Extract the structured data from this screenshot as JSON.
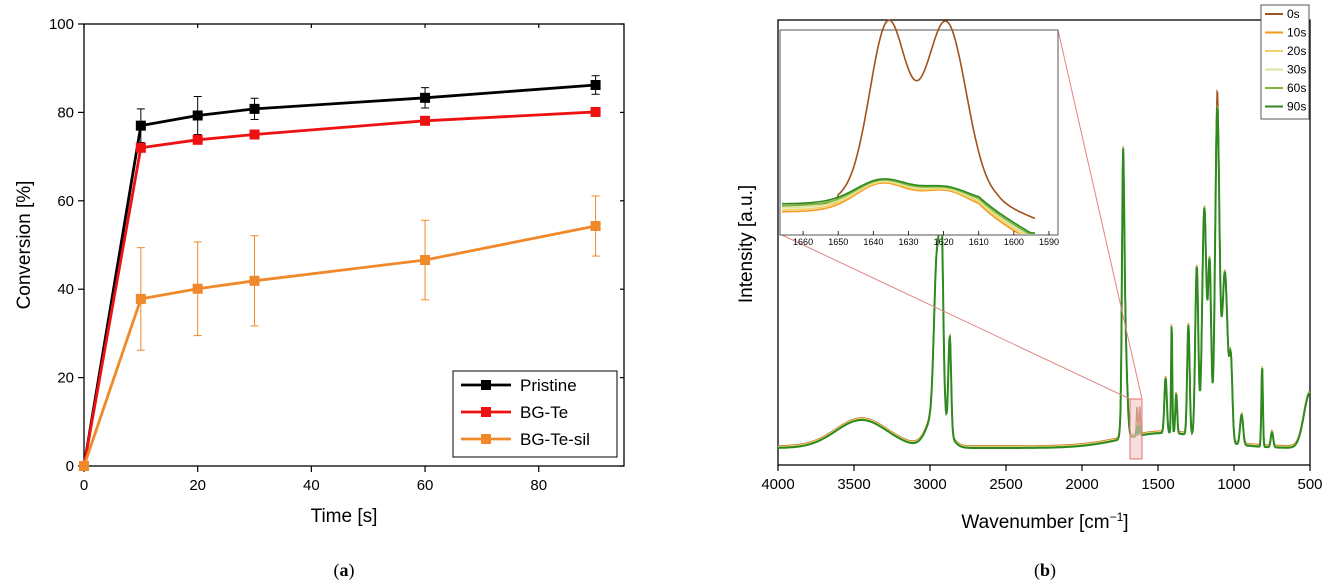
{
  "chart_data": [
    {
      "panel": "(a)",
      "type": "line",
      "xlabel": "Time [s]",
      "ylabel": "Conversion [%]",
      "xlim": [
        0,
        95
      ],
      "ylim": [
        0,
        100
      ],
      "xticks": [
        0,
        20,
        40,
        60,
        80
      ],
      "yticks": [
        0,
        20,
        40,
        60,
        80,
        100
      ],
      "grid": false,
      "legend_position": "bottom-right",
      "series": [
        {
          "name": "Pristine",
          "color": "#000000",
          "marker": "square",
          "x": [
            0,
            10,
            20,
            30,
            60,
            90
          ],
          "y": [
            0,
            77,
            79.3,
            80.8,
            83.3,
            86.2
          ],
          "err": [
            0,
            3.8,
            4.3,
            2.4,
            2.3,
            2.1
          ]
        },
        {
          "name": "BG-Te",
          "color": "#ee1111",
          "marker": "square",
          "x": [
            0,
            10,
            20,
            30,
            60,
            90
          ],
          "y": [
            0,
            72,
            73.8,
            75,
            78.1,
            80.1
          ],
          "err": [
            0,
            0.5,
            0.5,
            0.5,
            0.5,
            0.5
          ]
        },
        {
          "name": "BG-Te-sil",
          "color": "#f0892a",
          "marker": "square",
          "x": [
            0,
            10,
            20,
            30,
            60,
            90
          ],
          "y": [
            0,
            37.8,
            40.1,
            41.9,
            46.6,
            54.3
          ],
          "err": [
            0,
            11.6,
            10.6,
            10.2,
            9.0,
            6.8
          ]
        }
      ]
    },
    {
      "panel": "(b)",
      "type": "line",
      "xlabel": "Wavenumber [cm",
      "xlabel_sup": "−1",
      "xlabel_end": "]",
      "ylabel": "Intensity [a.u.]",
      "xlim": [
        4000,
        500
      ],
      "x_reversed": true,
      "xticks": [
        4000,
        3500,
        3000,
        2500,
        2000,
        1500,
        1000,
        500
      ],
      "yticks": [],
      "grid": false,
      "legend_position": "top-right",
      "series": [
        {
          "name": "0s",
          "color": "#a0521c"
        },
        {
          "name": "10s",
          "color": "#f39a1c"
        },
        {
          "name": "20s",
          "color": "#f6d36a"
        },
        {
          "name": "30s",
          "color": "#d7e69a"
        },
        {
          "name": "60s",
          "color": "#7fb33f"
        },
        {
          "name": "90s",
          "color": "#2e8a1f"
        }
      ],
      "inset": {
        "xlim": [
          1666,
          1588
        ],
        "xticks": [
          1660,
          1650,
          1640,
          1630,
          1620,
          1610,
          1600,
          1590
        ],
        "zoom_region": [
          1665,
          1598
        ],
        "peaks_0s": [
          1636,
          1619
        ]
      }
    }
  ]
}
